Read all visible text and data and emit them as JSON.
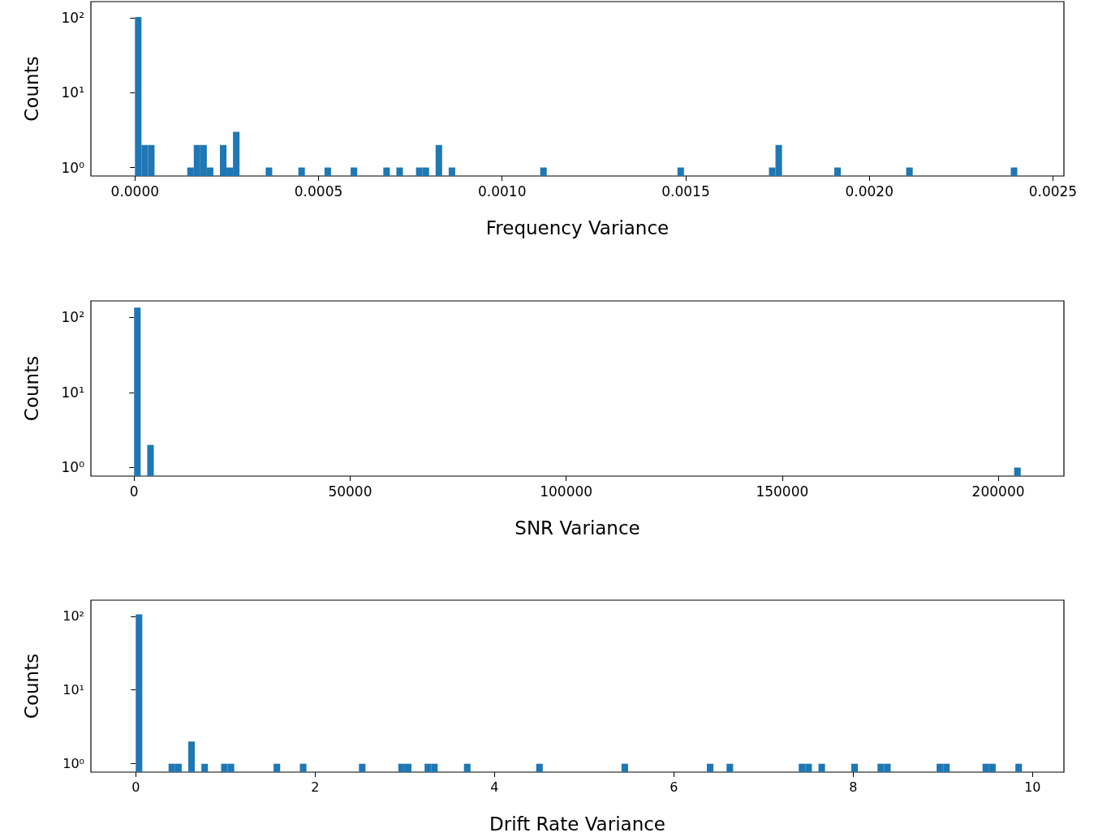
{
  "chart_data": [
    {
      "type": "histogram",
      "xlabel": "Frequency Variance",
      "ylabel": "Counts",
      "color": "#1f77b4",
      "log": true,
      "bins": [
        0,
        1.78e-05,
        3.56e-05,
        5.34e-05,
        0.0001424,
        0.0001602,
        0.000178,
        0.0001958,
        0.0002136,
        0.0002314,
        0.0002492,
        0.000267,
        0.0002848,
        0.000356,
        0.0003738,
        0.000445,
        0.0004628,
        0.0005162,
        0.000534,
        0.0005874,
        0.0006052,
        0.0006764,
        0.0006942,
        0.000712,
        0.0007298,
        0.0007654,
        0.0007832,
        0.000801,
        0.0008188,
        0.0008366,
        0.0008544,
        0.0008722,
        0.0011036,
        0.0011214,
        0.0014774,
        0.0014952,
        0.0017266,
        0.0017444,
        0.0017622,
        0.0019046,
        0.0019224,
        0.0021004,
        0.0021182,
        0.0023852,
        0.002403
      ],
      "values": [
        103,
        2,
        2,
        null,
        1,
        2,
        2,
        1,
        null,
        2,
        1,
        3,
        null,
        1,
        null,
        1,
        null,
        1,
        null,
        1,
        null,
        1,
        null,
        1,
        null,
        1,
        1,
        null,
        2,
        null,
        1,
        null,
        1,
        null,
        1,
        null,
        1,
        2,
        null,
        1,
        null,
        1,
        null,
        1
      ],
      "xlim": [
        -0.00012,
        0.00253
      ],
      "xticks": [
        {
          "value": 0,
          "label": "0.0000"
        },
        {
          "value": 0.0005,
          "label": "0.0005"
        },
        {
          "value": 0.001,
          "label": "0.0010"
        },
        {
          "value": 0.0015,
          "label": "0.0015"
        },
        {
          "value": 0.002,
          "label": "0.0020"
        },
        {
          "value": 0.0025,
          "label": "0.0025"
        }
      ],
      "ylim": [
        0.77,
        165
      ],
      "yticks": [
        {
          "value": 1,
          "label": "10⁰"
        },
        {
          "value": 10,
          "label": "10¹"
        },
        {
          "value": 100,
          "label": "10²"
        }
      ]
    },
    {
      "type": "histogram",
      "xlabel": "SNR Variance",
      "ylabel": "Counts",
      "color": "#1f77b4",
      "log": true,
      "bins": [
        0,
        1520,
        3040,
        4560,
        203680,
        205200
      ],
      "values": [
        134,
        null,
        2,
        null,
        1
      ],
      "xlim": [
        -10000,
        215200
      ],
      "xticks": [
        0,
        50000,
        100000,
        150000,
        200000
      ],
      "ylim": [
        0.77,
        165
      ],
      "yticks": [
        {
          "value": 1,
          "label": "10⁰"
        },
        {
          "value": 10,
          "label": "10¹"
        },
        {
          "value": 100,
          "label": "10²"
        }
      ]
    },
    {
      "type": "histogram",
      "xlabel": "Drift Rate Variance",
      "ylabel": "Counts",
      "color": "#1f77b4",
      "log": true,
      "bins": [
        0,
        0.0732,
        0.366,
        0.4392,
        0.5124,
        0.5856,
        0.6588,
        0.732,
        0.8052,
        0.9516,
        1.0248,
        1.098,
        1.5372,
        1.6104,
        1.83,
        1.9032,
        2.4888,
        2.562,
        2.928,
        3.0012,
        3.0744,
        3.2208,
        3.294,
        3.3672,
        3.66,
        3.7332,
        4.4652,
        4.5384,
        5.4168,
        5.49,
        6.3684,
        6.4416,
        6.588,
        6.6612,
        7.3932,
        7.4664,
        7.5396,
        7.6128,
        7.686,
        7.9788,
        8.052,
        8.2716,
        8.3448,
        8.418,
        8.9304,
        9.0036,
        9.0768,
        9.4428,
        9.516,
        9.5892,
        9.8088,
        9.882
      ],
      "values": [
        106,
        null,
        1,
        1,
        null,
        2,
        null,
        1,
        null,
        1,
        1,
        null,
        1,
        null,
        1,
        null,
        1,
        null,
        1,
        1,
        null,
        1,
        1,
        null,
        1,
        null,
        1,
        null,
        1,
        null,
        1,
        null,
        1,
        null,
        1,
        1,
        null,
        1,
        null,
        1,
        null,
        1,
        1,
        null,
        1,
        1,
        null,
        1,
        1,
        null,
        1
      ],
      "xlim": [
        -0.5,
        10.35
      ],
      "xticks": [
        0,
        2,
        4,
        6,
        8,
        10
      ],
      "ylim": [
        0.77,
        165
      ],
      "yticks": [
        {
          "value": 1,
          "label": "10⁰"
        },
        {
          "value": 10,
          "label": "10¹"
        },
        {
          "value": 100,
          "label": "10²"
        }
      ]
    }
  ]
}
